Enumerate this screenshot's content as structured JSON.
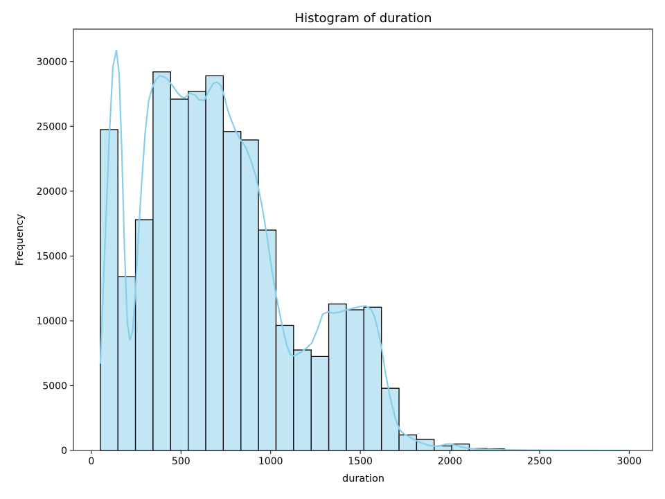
{
  "chart_data": {
    "type": "bar",
    "title": "Histogram of duration",
    "xlabel": "duration",
    "ylabel": "Frequency",
    "xlim": [
      -100,
      3130
    ],
    "ylim": [
      0,
      32500
    ],
    "xticks": [
      0,
      500,
      1000,
      1500,
      2000,
      2500,
      3000
    ],
    "yticks": [
      0,
      5000,
      10000,
      15000,
      20000,
      25000,
      30000
    ],
    "grid": false,
    "legend": "none",
    "bar_color": "#87ceeb",
    "bar_fill_opacity": 0.5,
    "bar_edge_color": "#000000",
    "kde_color": "#87ceeb",
    "bins": [
      {
        "x0": 50,
        "x1": 148,
        "count": 24750
      },
      {
        "x0": 148,
        "x1": 246,
        "count": 13400
      },
      {
        "x0": 246,
        "x1": 344,
        "count": 17800
      },
      {
        "x0": 344,
        "x1": 442,
        "count": 29200
      },
      {
        "x0": 442,
        "x1": 540,
        "count": 27100
      },
      {
        "x0": 540,
        "x1": 638,
        "count": 27700
      },
      {
        "x0": 638,
        "x1": 736,
        "count": 28900
      },
      {
        "x0": 736,
        "x1": 834,
        "count": 24600
      },
      {
        "x0": 834,
        "x1": 932,
        "count": 23950
      },
      {
        "x0": 932,
        "x1": 1030,
        "count": 17000
      },
      {
        "x0": 1030,
        "x1": 1128,
        "count": 9650
      },
      {
        "x0": 1128,
        "x1": 1226,
        "count": 7750
      },
      {
        "x0": 1226,
        "x1": 1324,
        "count": 7250
      },
      {
        "x0": 1324,
        "x1": 1422,
        "count": 11300
      },
      {
        "x0": 1422,
        "x1": 1520,
        "count": 10850
      },
      {
        "x0": 1520,
        "x1": 1618,
        "count": 11050
      },
      {
        "x0": 1618,
        "x1": 1716,
        "count": 4800
      },
      {
        "x0": 1716,
        "x1": 1814,
        "count": 1200
      },
      {
        "x0": 1814,
        "x1": 1912,
        "count": 850
      },
      {
        "x0": 1912,
        "x1": 2010,
        "count": 350
      },
      {
        "x0": 2010,
        "x1": 2108,
        "count": 500
      },
      {
        "x0": 2108,
        "x1": 2206,
        "count": 150
      },
      {
        "x0": 2206,
        "x1": 2304,
        "count": 120
      },
      {
        "x0": 2304,
        "x1": 2402,
        "count": 40
      },
      {
        "x0": 2402,
        "x1": 2500,
        "count": 30
      },
      {
        "x0": 2500,
        "x1": 2598,
        "count": 20
      },
      {
        "x0": 2598,
        "x1": 2696,
        "count": 15
      },
      {
        "x0": 2696,
        "x1": 2794,
        "count": 10
      },
      {
        "x0": 2794,
        "x1": 2892,
        "count": 8
      },
      {
        "x0": 2892,
        "x1": 2990,
        "count": 6
      }
    ],
    "kde": {
      "x": [
        50,
        75,
        100,
        120,
        140,
        155,
        170,
        185,
        200,
        215,
        230,
        245,
        260,
        280,
        300,
        320,
        340,
        360,
        380,
        400,
        420,
        450,
        480,
        500,
        520,
        550,
        580,
        600,
        630,
        650,
        680,
        700,
        720,
        740,
        760,
        780,
        800,
        830,
        860,
        890,
        920,
        950,
        980,
        1000,
        1030,
        1060,
        1090,
        1110,
        1130,
        1160,
        1200,
        1230,
        1260,
        1290,
        1320,
        1350,
        1380,
        1410,
        1440,
        1470,
        1500,
        1530,
        1560,
        1580,
        1600,
        1620,
        1640,
        1660,
        1680,
        1700,
        1720,
        1740,
        1760,
        1780,
        1800,
        1820,
        1840,
        1860,
        1880,
        1900,
        1920,
        1940,
        1960,
        1980,
        2000,
        2020,
        2040,
        2060,
        2080,
        2100,
        2150,
        2200,
        2250,
        2300,
        2400,
        2500,
        2600,
        2700,
        2800,
        2990
      ],
      "y": [
        6700,
        15500,
        24200,
        29600,
        30900,
        29000,
        23000,
        15500,
        10000,
        8500,
        9200,
        12000,
        16000,
        20500,
        24500,
        27000,
        28000,
        28600,
        28900,
        28850,
        28700,
        28200,
        27600,
        27300,
        27200,
        27550,
        27400,
        27050,
        27000,
        27600,
        28300,
        28400,
        28200,
        27400,
        26300,
        25500,
        24800,
        24000,
        23400,
        22400,
        21000,
        19000,
        16500,
        14500,
        12000,
        9900,
        8100,
        7400,
        7300,
        7500,
        7900,
        8300,
        9300,
        10500,
        10700,
        10600,
        10650,
        10800,
        10900,
        11000,
        11100,
        11150,
        10900,
        10300,
        9200,
        7800,
        6000,
        4500,
        3300,
        2300,
        1600,
        1300,
        1150,
        1000,
        850,
        700,
        600,
        500,
        400,
        350,
        320,
        350,
        420,
        500,
        500,
        450,
        370,
        300,
        230,
        170,
        110,
        80,
        60,
        40,
        25,
        15,
        10,
        6,
        4,
        0
      ]
    }
  }
}
